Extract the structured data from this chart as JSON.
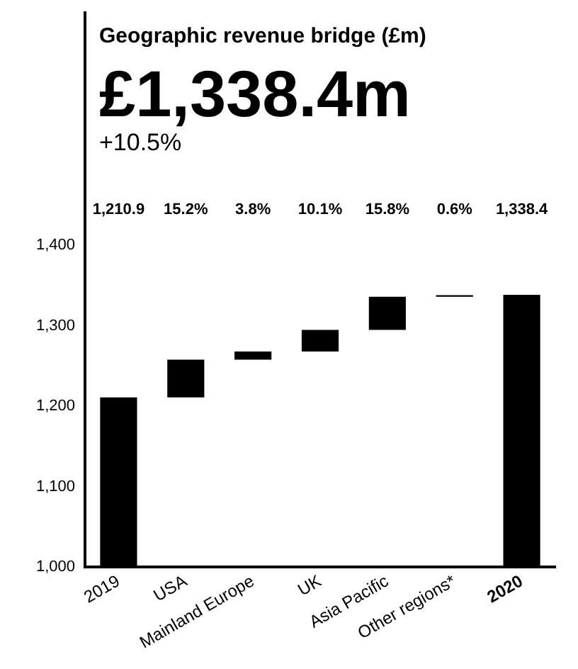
{
  "chart_data": {
    "type": "bar",
    "title": "Geographic revenue bridge (£m)",
    "subtitle": "£1,338.4m",
    "annotations": [
      "+10.5%",
      "15.2%",
      "3.8%",
      "10.1%",
      "15.8%",
      "0.6%"
    ],
    "categories": [
      "2019",
      "USA",
      "Mainland Europe",
      "UK",
      "Asia Pacific",
      "Other regions*",
      "2020"
    ],
    "values": [
      1210.9,
      47,
      10,
      27,
      41,
      2,
      1338.4
    ],
    "base": [
      null,
      1210.9,
      1257.9,
      1267.9,
      1294.9,
      1335.9,
      null
    ],
    "color": "#000000",
    "value_labels": [
      "1,210.9",
      null,
      null,
      null,
      null,
      null,
      "1,338.4"
    ],
    "ylim": [
      1000,
      1400
    ],
    "yticks": [
      {
        "value": 1000,
        "label": "1,000"
      },
      {
        "value": 1100,
        "label": "1,100"
      },
      {
        "value": 1200,
        "label": "1,200"
      },
      {
        "value": 1300,
        "label": "1,300"
      },
      {
        "value": 1400,
        "label": "1,400"
      }
    ],
    "grid": false,
    "legend": false
  }
}
